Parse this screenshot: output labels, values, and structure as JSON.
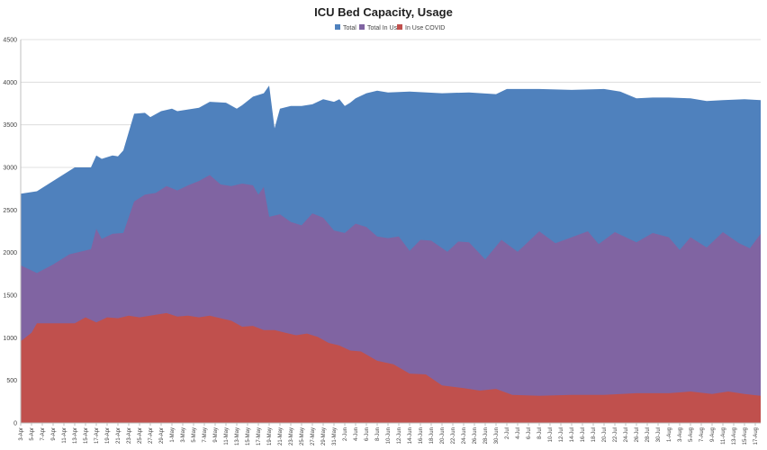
{
  "chart_data": {
    "type": "area",
    "title": "ICU Bed Capacity, Usage",
    "xlabel": "",
    "ylabel": "",
    "ylim": [
      0,
      4500
    ],
    "yticks": [
      0,
      500,
      1000,
      1500,
      2000,
      2500,
      3000,
      3500,
      4000,
      4500
    ],
    "grid": true,
    "legend_position": "top-center",
    "x_start_date": "2020-04-03",
    "x_end_date": "2020-08-18",
    "tick_labels": [
      "3-Apr",
      "5-Apr",
      "7-Apr",
      "9-Apr",
      "11-Apr",
      "13-Apr",
      "15-Apr",
      "17-Apr",
      "19-Apr",
      "21-Apr",
      "23-Apr",
      "25-Apr",
      "27-Apr",
      "29-Apr",
      "1-May",
      "3-May",
      "5-May",
      "7-May",
      "9-May",
      "11-May",
      "13-May",
      "15-May",
      "17-May",
      "19-May",
      "21-May",
      "23-May",
      "25-May",
      "27-May",
      "29-May",
      "31-May",
      "2-Jun",
      "4-Jun",
      "6-Jun",
      "8-Jun",
      "10-Jun",
      "12-Jun",
      "14-Jun",
      "16-Jun",
      "18-Jun",
      "20-Jun",
      "22-Jun",
      "24-Jun",
      "26-Jun",
      "28-Jun",
      "30-Jun",
      "2-Jul",
      "4-Jul",
      "6-Jul",
      "8-Jul",
      "10-Jul",
      "12-Jul",
      "14-Jul",
      "16-Jul",
      "18-Jul",
      "20-Jul",
      "22-Jul",
      "24-Jul",
      "26-Jul",
      "28-Jul",
      "30-Jul",
      "1-Aug",
      "3-Aug",
      "5-Aug",
      "7-Aug",
      "9-Aug",
      "11-Aug",
      "13-Aug",
      "15-Aug",
      "17-Aug"
    ],
    "series": [
      {
        "name": "Total",
        "color": "#4f81bd",
        "points": [
          [
            "2020-04-03",
            2690
          ],
          [
            "2020-04-06",
            2720
          ],
          [
            "2020-04-09",
            2840
          ],
          [
            "2020-04-13",
            3000
          ],
          [
            "2020-04-16",
            3000
          ],
          [
            "2020-04-17",
            3140
          ],
          [
            "2020-04-18",
            3100
          ],
          [
            "2020-04-20",
            3140
          ],
          [
            "2020-04-21",
            3130
          ],
          [
            "2020-04-22",
            3200
          ],
          [
            "2020-04-24",
            3630
          ],
          [
            "2020-04-26",
            3640
          ],
          [
            "2020-04-27",
            3590
          ],
          [
            "2020-04-29",
            3660
          ],
          [
            "2020-05-01",
            3690
          ],
          [
            "2020-05-02",
            3660
          ],
          [
            "2020-05-04",
            3680
          ],
          [
            "2020-05-06",
            3700
          ],
          [
            "2020-05-08",
            3770
          ],
          [
            "2020-05-11",
            3760
          ],
          [
            "2020-05-13",
            3690
          ],
          [
            "2020-05-14",
            3730
          ],
          [
            "2020-05-16",
            3830
          ],
          [
            "2020-05-18",
            3870
          ],
          [
            "2020-05-19",
            3960
          ],
          [
            "2020-05-20",
            3460
          ],
          [
            "2020-05-21",
            3690
          ],
          [
            "2020-05-23",
            3720
          ],
          [
            "2020-05-25",
            3720
          ],
          [
            "2020-05-27",
            3740
          ],
          [
            "2020-05-29",
            3800
          ],
          [
            "2020-05-31",
            3770
          ],
          [
            "2020-06-01",
            3800
          ],
          [
            "2020-06-02",
            3720
          ],
          [
            "2020-06-03",
            3760
          ],
          [
            "2020-06-04",
            3810
          ],
          [
            "2020-06-06",
            3870
          ],
          [
            "2020-06-08",
            3900
          ],
          [
            "2020-06-10",
            3880
          ],
          [
            "2020-06-14",
            3890
          ],
          [
            "2020-06-20",
            3870
          ],
          [
            "2020-06-25",
            3880
          ],
          [
            "2020-06-30",
            3860
          ],
          [
            "2020-07-02",
            3920
          ],
          [
            "2020-07-08",
            3920
          ],
          [
            "2020-07-14",
            3910
          ],
          [
            "2020-07-20",
            3920
          ],
          [
            "2020-07-23",
            3890
          ],
          [
            "2020-07-26",
            3810
          ],
          [
            "2020-07-29",
            3820
          ],
          [
            "2020-08-01",
            3820
          ],
          [
            "2020-08-05",
            3810
          ],
          [
            "2020-08-08",
            3780
          ],
          [
            "2020-08-11",
            3790
          ],
          [
            "2020-08-15",
            3800
          ],
          [
            "2020-08-18",
            3790
          ]
        ]
      },
      {
        "name": "Total In Use",
        "color": "#8064a2",
        "points": [
          [
            "2020-04-03",
            1850
          ],
          [
            "2020-04-05",
            1790
          ],
          [
            "2020-04-06",
            1760
          ],
          [
            "2020-04-09",
            1860
          ],
          [
            "2020-04-12",
            1980
          ],
          [
            "2020-04-14",
            2010
          ],
          [
            "2020-04-16",
            2040
          ],
          [
            "2020-04-17",
            2280
          ],
          [
            "2020-04-18",
            2160
          ],
          [
            "2020-04-20",
            2220
          ],
          [
            "2020-04-22",
            2230
          ],
          [
            "2020-04-24",
            2600
          ],
          [
            "2020-04-26",
            2680
          ],
          [
            "2020-04-28",
            2700
          ],
          [
            "2020-04-30",
            2780
          ],
          [
            "2020-05-02",
            2730
          ],
          [
            "2020-05-04",
            2790
          ],
          [
            "2020-05-06",
            2840
          ],
          [
            "2020-05-08",
            2910
          ],
          [
            "2020-05-10",
            2800
          ],
          [
            "2020-05-12",
            2780
          ],
          [
            "2020-05-14",
            2810
          ],
          [
            "2020-05-16",
            2790
          ],
          [
            "2020-05-17",
            2680
          ],
          [
            "2020-05-18",
            2770
          ],
          [
            "2020-05-19",
            2420
          ],
          [
            "2020-05-21",
            2450
          ],
          [
            "2020-05-23",
            2360
          ],
          [
            "2020-05-25",
            2320
          ],
          [
            "2020-05-27",
            2460
          ],
          [
            "2020-05-29",
            2410
          ],
          [
            "2020-05-31",
            2260
          ],
          [
            "2020-06-02",
            2230
          ],
          [
            "2020-06-04",
            2340
          ],
          [
            "2020-06-06",
            2300
          ],
          [
            "2020-06-08",
            2190
          ],
          [
            "2020-06-10",
            2170
          ],
          [
            "2020-06-12",
            2190
          ],
          [
            "2020-06-14",
            2020
          ],
          [
            "2020-06-16",
            2150
          ],
          [
            "2020-06-18",
            2140
          ],
          [
            "2020-06-21",
            2010
          ],
          [
            "2020-06-23",
            2130
          ],
          [
            "2020-06-25",
            2120
          ],
          [
            "2020-06-28",
            1920
          ],
          [
            "2020-07-01",
            2150
          ],
          [
            "2020-07-04",
            2010
          ],
          [
            "2020-07-08",
            2250
          ],
          [
            "2020-07-11",
            2110
          ],
          [
            "2020-07-14",
            2180
          ],
          [
            "2020-07-17",
            2250
          ],
          [
            "2020-07-19",
            2100
          ],
          [
            "2020-07-22",
            2240
          ],
          [
            "2020-07-26",
            2120
          ],
          [
            "2020-07-29",
            2230
          ],
          [
            "2020-08-01",
            2180
          ],
          [
            "2020-08-03",
            2030
          ],
          [
            "2020-08-05",
            2180
          ],
          [
            "2020-08-08",
            2060
          ],
          [
            "2020-08-11",
            2240
          ],
          [
            "2020-08-14",
            2110
          ],
          [
            "2020-08-16",
            2050
          ],
          [
            "2020-08-18",
            2220
          ]
        ]
      },
      {
        "name": "In Use COVID",
        "color": "#c0504d",
        "points": [
          [
            "2020-04-03",
            960
          ],
          [
            "2020-04-05",
            1060
          ],
          [
            "2020-04-06",
            1170
          ],
          [
            "2020-04-10",
            1170
          ],
          [
            "2020-04-13",
            1170
          ],
          [
            "2020-04-15",
            1240
          ],
          [
            "2020-04-17",
            1180
          ],
          [
            "2020-04-19",
            1240
          ],
          [
            "2020-04-21",
            1230
          ],
          [
            "2020-04-23",
            1260
          ],
          [
            "2020-04-25",
            1240
          ],
          [
            "2020-04-28",
            1270
          ],
          [
            "2020-04-30",
            1290
          ],
          [
            "2020-05-02",
            1250
          ],
          [
            "2020-05-04",
            1260
          ],
          [
            "2020-05-06",
            1240
          ],
          [
            "2020-05-08",
            1260
          ],
          [
            "2020-05-10",
            1230
          ],
          [
            "2020-05-12",
            1200
          ],
          [
            "2020-05-14",
            1130
          ],
          [
            "2020-05-16",
            1140
          ],
          [
            "2020-05-18",
            1090
          ],
          [
            "2020-05-20",
            1090
          ],
          [
            "2020-05-22",
            1060
          ],
          [
            "2020-05-24",
            1030
          ],
          [
            "2020-05-26",
            1050
          ],
          [
            "2020-05-28",
            1010
          ],
          [
            "2020-05-30",
            940
          ],
          [
            "2020-06-01",
            910
          ],
          [
            "2020-06-03",
            850
          ],
          [
            "2020-06-05",
            840
          ],
          [
            "2020-06-08",
            730
          ],
          [
            "2020-06-11",
            690
          ],
          [
            "2020-06-14",
            580
          ],
          [
            "2020-06-17",
            570
          ],
          [
            "2020-06-20",
            440
          ],
          [
            "2020-06-24",
            410
          ],
          [
            "2020-06-27",
            380
          ],
          [
            "2020-06-30",
            400
          ],
          [
            "2020-07-03",
            330
          ],
          [
            "2020-07-08",
            320
          ],
          [
            "2020-07-14",
            330
          ],
          [
            "2020-07-20",
            330
          ],
          [
            "2020-07-26",
            350
          ],
          [
            "2020-08-01",
            350
          ],
          [
            "2020-08-05",
            370
          ],
          [
            "2020-08-09",
            340
          ],
          [
            "2020-08-12",
            370
          ],
          [
            "2020-08-15",
            340
          ],
          [
            "2020-08-18",
            320
          ]
        ]
      }
    ]
  }
}
